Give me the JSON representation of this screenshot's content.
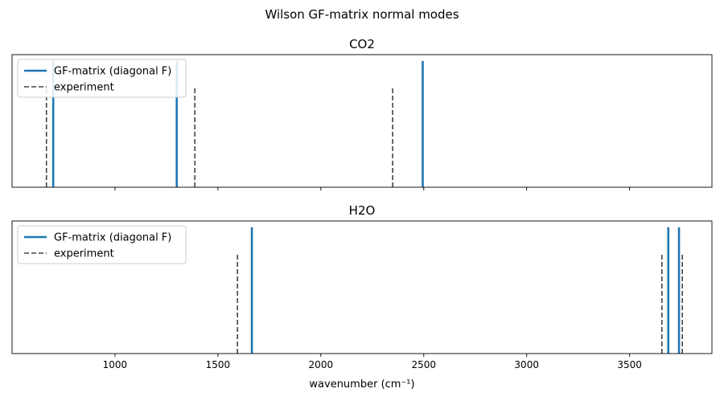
{
  "figure": {
    "suptitle": "Wilson GF-matrix normal modes",
    "xlabel": "wavenumber (cm⁻¹)"
  },
  "colors": {
    "model": "#1f77b4",
    "experiment": "#444444",
    "axes": "#000000"
  },
  "chart_data": [
    {
      "type": "line",
      "title": "CO2",
      "xlim": [
        500,
        3900
      ],
      "ylim": [
        0,
        1.05
      ],
      "legend_position": "upper-left",
      "xticks": [
        1000,
        1500,
        2000,
        2500,
        3000,
        3500
      ],
      "show_xtick_labels": false,
      "series": [
        {
          "name": "GF-matrix (diagonal F)",
          "style": "solid",
          "height": 1.0,
          "x": [
            700,
            1300,
            2495
          ]
        },
        {
          "name": "experiment",
          "style": "dashed",
          "height": 0.8,
          "x": [
            667,
            1388,
            2349
          ]
        }
      ]
    },
    {
      "type": "line",
      "title": "H2O",
      "xlim": [
        500,
        3900
      ],
      "ylim": [
        0,
        1.05
      ],
      "legend_position": "upper-left",
      "xticks": [
        1000,
        1500,
        2000,
        2500,
        3000,
        3500
      ],
      "xtick_labels": [
        "1000",
        "1500",
        "2000",
        "2500",
        "3000",
        "3500"
      ],
      "show_xtick_labels": true,
      "series": [
        {
          "name": "GF-matrix (diagonal F)",
          "style": "solid",
          "height": 1.0,
          "x": [
            1665,
            3688,
            3740
          ]
        },
        {
          "name": "experiment",
          "style": "dashed",
          "height": 0.8,
          "x": [
            1595,
            3657,
            3756
          ]
        }
      ]
    }
  ]
}
